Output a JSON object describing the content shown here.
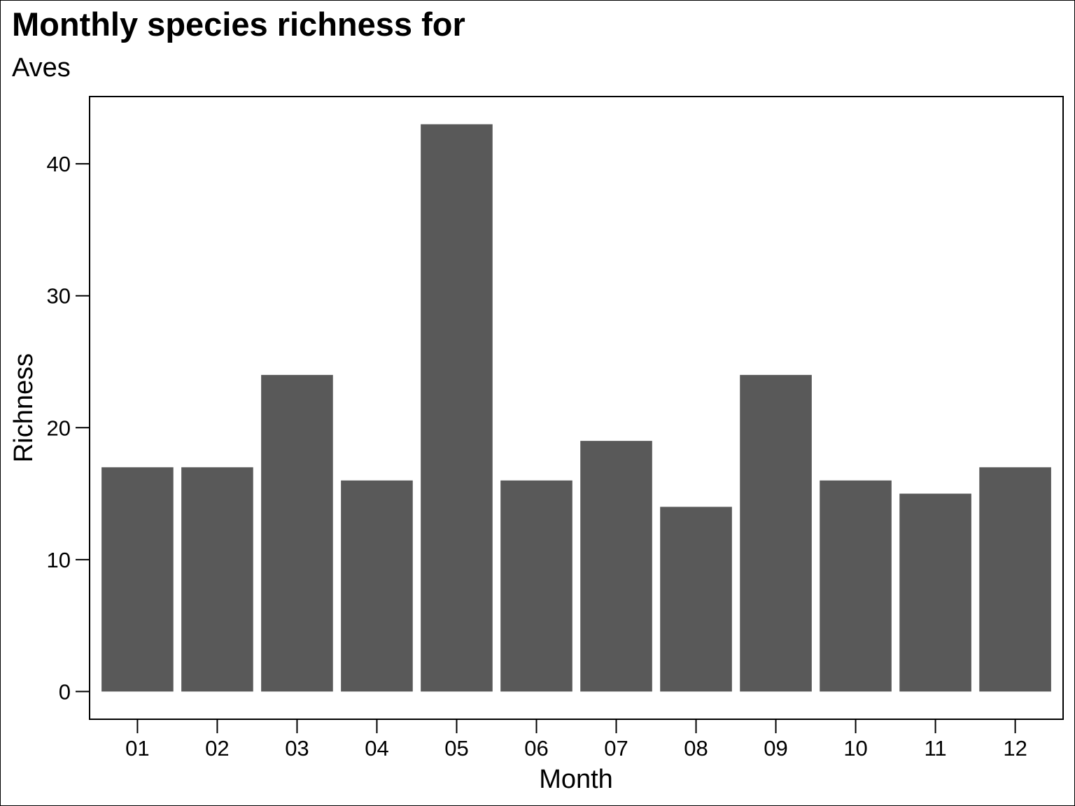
{
  "chart_data": {
    "type": "bar",
    "title": "Monthly species richness for",
    "subtitle": "Aves",
    "xlabel": "Month",
    "ylabel": "Richness",
    "categories": [
      "01",
      "02",
      "03",
      "04",
      "05",
      "06",
      "07",
      "08",
      "09",
      "10",
      "11",
      "12"
    ],
    "values": [
      17,
      17,
      24,
      16,
      43,
      16,
      19,
      14,
      24,
      16,
      15,
      17
    ],
    "ylim": [
      -2.1,
      45.1
    ],
    "yticks": [
      0,
      10,
      20,
      30,
      40
    ],
    "grid": false,
    "legend": "none",
    "bar_color": "#595959",
    "axis_color": "#000000"
  }
}
